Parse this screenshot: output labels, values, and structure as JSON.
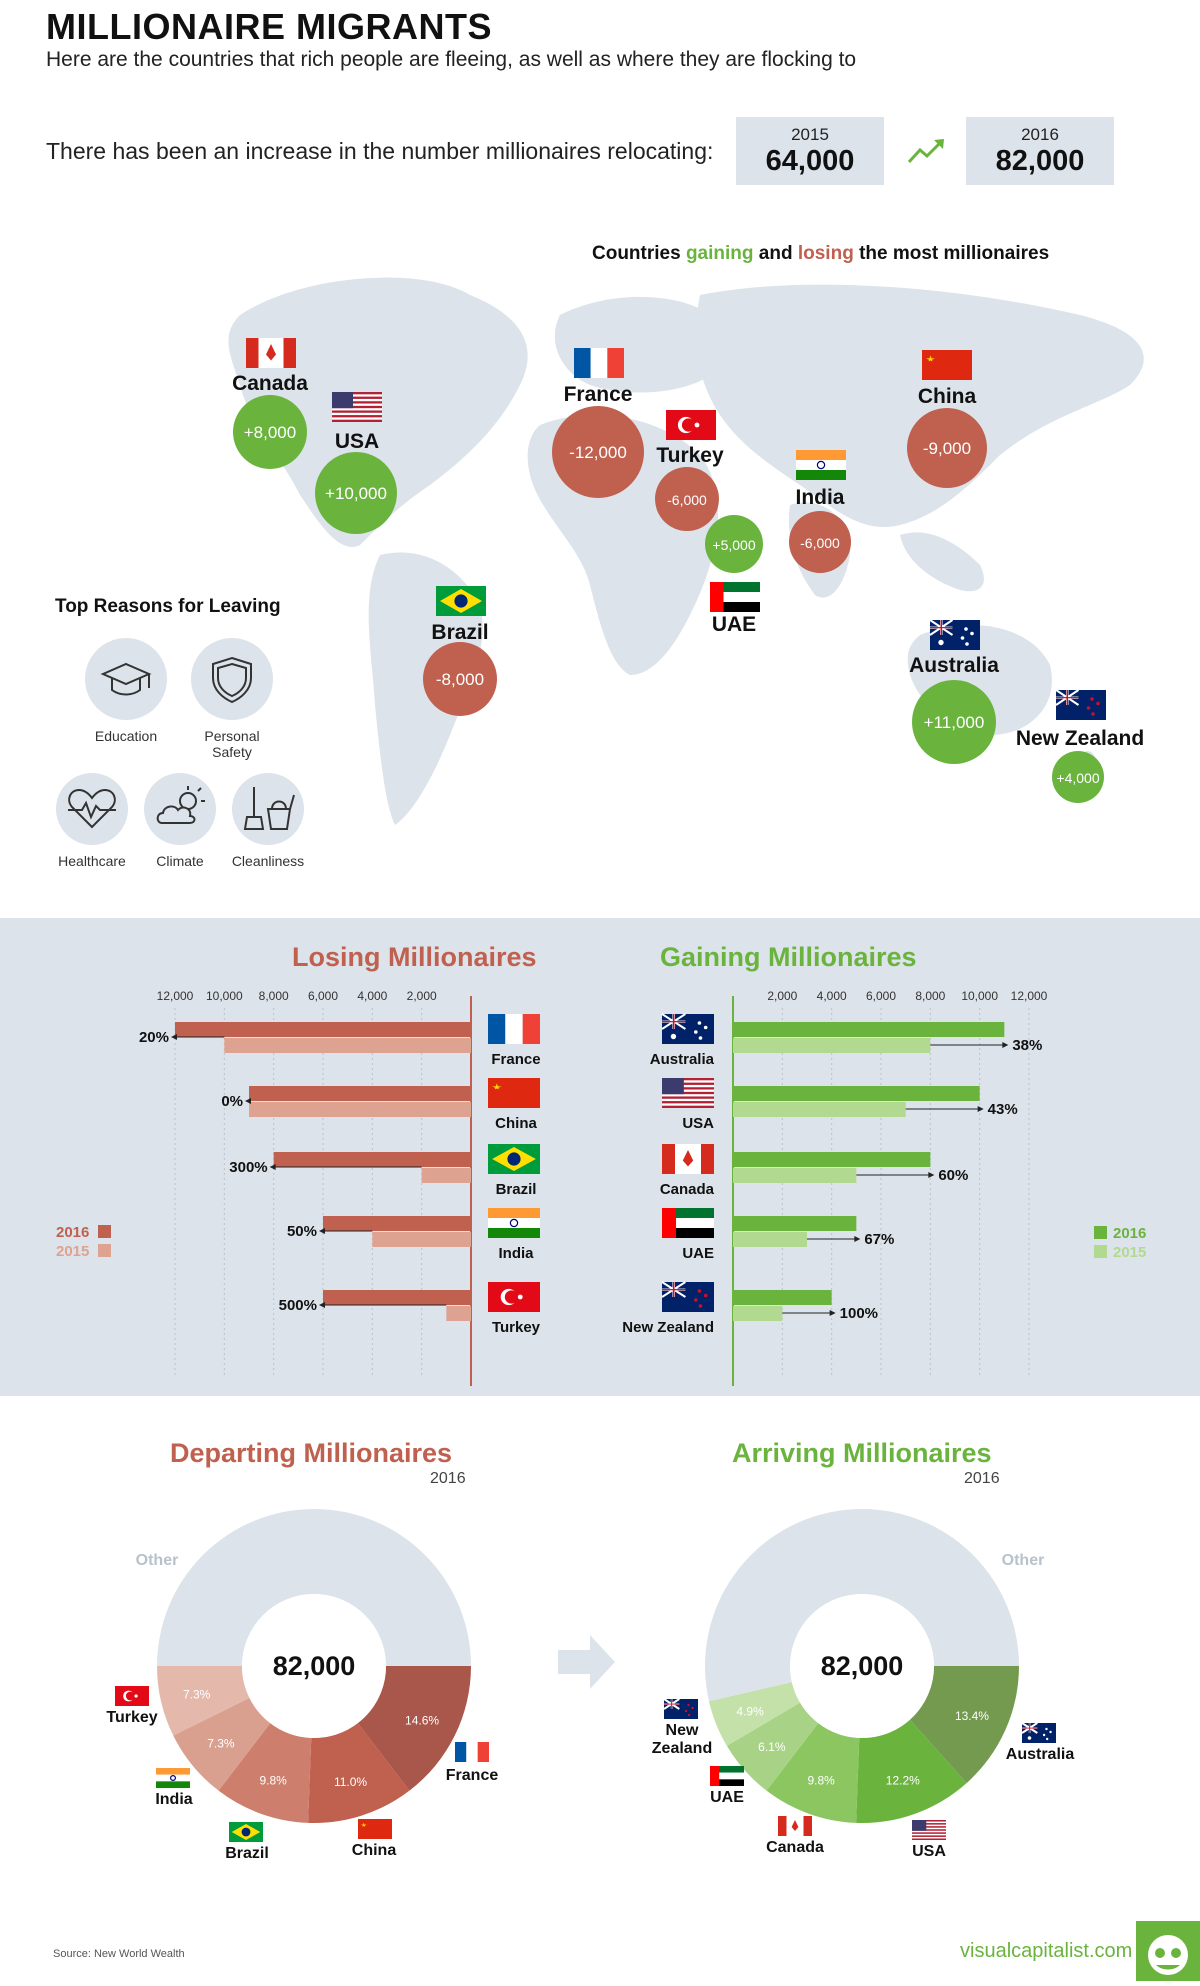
{
  "header": {
    "title": "MILLIONAIRE MIGRANTS",
    "subtitle": "Here are the countries that rich people are fleeing, as well as where they are flocking to",
    "increase_text": "There has been an increase in the number millionaires relocating:",
    "year_a": "2015",
    "value_a": "64,000",
    "year_b": "2016",
    "value_b": "82,000"
  },
  "map": {
    "heading_1": "Countries ",
    "heading_gain": "gaining",
    "heading_2": " and ",
    "heading_lose": "losing",
    "heading_3": " the most millionaires",
    "bubbles": [
      {
        "name": "Canada",
        "value": "+8,000",
        "flag": "canada-flag",
        "kind": "gain"
      },
      {
        "name": "USA",
        "value": "+10,000",
        "flag": "usa-flag",
        "kind": "gain"
      },
      {
        "name": "France",
        "value": "-12,000",
        "flag": "france-flag",
        "kind": "loss"
      },
      {
        "name": "Turkey",
        "value": "-6,000",
        "flag": "turkey-flag",
        "kind": "loss"
      },
      {
        "name": "UAE",
        "value": "+5,000",
        "flag": "uae-flag",
        "kind": "gain"
      },
      {
        "name": "India",
        "value": "-6,000",
        "flag": "india-flag",
        "kind": "loss"
      },
      {
        "name": "China",
        "value": "-9,000",
        "flag": "china-flag",
        "kind": "loss"
      },
      {
        "name": "Brazil",
        "value": "-8,000",
        "flag": "brazil-flag",
        "kind": "loss"
      },
      {
        "name": "Australia",
        "value": "+11,000",
        "flag": "australia-flag",
        "kind": "gain"
      },
      {
        "name": "New Zealand",
        "value": "+4,000",
        "flag": "new-zealand-flag",
        "kind": "gain"
      }
    ]
  },
  "reasons": {
    "title": "Top Reasons for Leaving",
    "items": [
      {
        "label": "Education",
        "icon": "graduation-cap-icon"
      },
      {
        "label": "Personal Safety",
        "icon": "shield-icon"
      },
      {
        "label": "Healthcare",
        "icon": "heartbeat-icon"
      },
      {
        "label": "Climate",
        "icon": "sun-cloud-icon"
      },
      {
        "label": "Cleanliness",
        "icon": "broom-bucket-icon"
      }
    ]
  },
  "colors": {
    "loss_2016": "#c0604f",
    "loss_2015": "#dea290",
    "gain_2016": "#6ab43e",
    "gain_2015": "#b1d98f",
    "band": "#dde3ea",
    "other": "#dde3ea"
  },
  "chart_data": [
    {
      "type": "bar",
      "title": "Losing Millionaires",
      "orientation": "horizontal",
      "categories": [
        "France",
        "China",
        "Brazil",
        "India",
        "Turkey"
      ],
      "series": [
        {
          "name": "2016",
          "values": [
            12000,
            9000,
            8000,
            6000,
            6000
          ]
        },
        {
          "name": "2015",
          "values": [
            10000,
            9000,
            2000,
            4000,
            1000
          ]
        }
      ],
      "change_labels": [
        "20%",
        "0%",
        "300%",
        "50%",
        "500%"
      ],
      "ticks": [
        "12,000",
        "10,000",
        "8,000",
        "6,000",
        "4,000",
        "2,000"
      ],
      "xlim": [
        0,
        12000
      ],
      "legend": "left"
    },
    {
      "type": "bar",
      "title": "Gaining Millionaires",
      "orientation": "horizontal",
      "categories": [
        "Australia",
        "USA",
        "Canada",
        "UAE",
        "New Zealand"
      ],
      "series": [
        {
          "name": "2016",
          "values": [
            11000,
            10000,
            8000,
            5000,
            4000
          ]
        },
        {
          "name": "2015",
          "values": [
            8000,
            7000,
            5000,
            3000,
            2000
          ]
        }
      ],
      "change_labels": [
        "38%",
        "43%",
        "60%",
        "67%",
        "100%"
      ],
      "ticks": [
        "2,000",
        "4,000",
        "6,000",
        "8,000",
        "10,000",
        "12,000"
      ],
      "xlim": [
        0,
        12000
      ],
      "legend": "right"
    },
    {
      "type": "pie",
      "title": "Departing Millionaires",
      "subtitle": "2016",
      "center": "82,000",
      "slices": [
        {
          "name": "France",
          "value": 14.6,
          "label": "14.6%",
          "color": "#a9574a"
        },
        {
          "name": "China",
          "value": 11.0,
          "label": "11.0%",
          "color": "#c0604f"
        },
        {
          "name": "Brazil",
          "value": 9.8,
          "label": "9.8%",
          "color": "#cd7e6c"
        },
        {
          "name": "India",
          "value": 7.3,
          "label": "7.3%",
          "color": "#d9a08f"
        },
        {
          "name": "Turkey",
          "value": 7.3,
          "label": "7.3%",
          "color": "#e4b9ab"
        },
        {
          "name": "Other",
          "value": 50.0,
          "label": "",
          "color": "#dde3ea"
        }
      ],
      "other_label": "Other"
    },
    {
      "type": "pie",
      "title": "Arriving Millionaires",
      "subtitle": "2016",
      "center": "82,000",
      "slices": [
        {
          "name": "Australia",
          "value": 13.4,
          "label": "13.4%",
          "color": "#739a4e"
        },
        {
          "name": "USA",
          "value": 12.2,
          "label": "12.2%",
          "color": "#6ab43e"
        },
        {
          "name": "Canada",
          "value": 9.8,
          "label": "9.8%",
          "color": "#8bc660"
        },
        {
          "name": "UAE",
          "value": 6.1,
          "label": "6.1%",
          "color": "#a8d386"
        },
        {
          "name": "New Zealand",
          "value": 4.9,
          "label": "4.9%",
          "color": "#c3e1a9"
        },
        {
          "name": "Other",
          "value": 53.6,
          "label": "",
          "color": "#dde3ea"
        }
      ],
      "other_label": "Other"
    }
  ],
  "legend": {
    "y2016": "2016",
    "y2015": "2015"
  },
  "footer": {
    "source": "Source: New World Wealth",
    "brand": "visualcapitalist.com"
  }
}
